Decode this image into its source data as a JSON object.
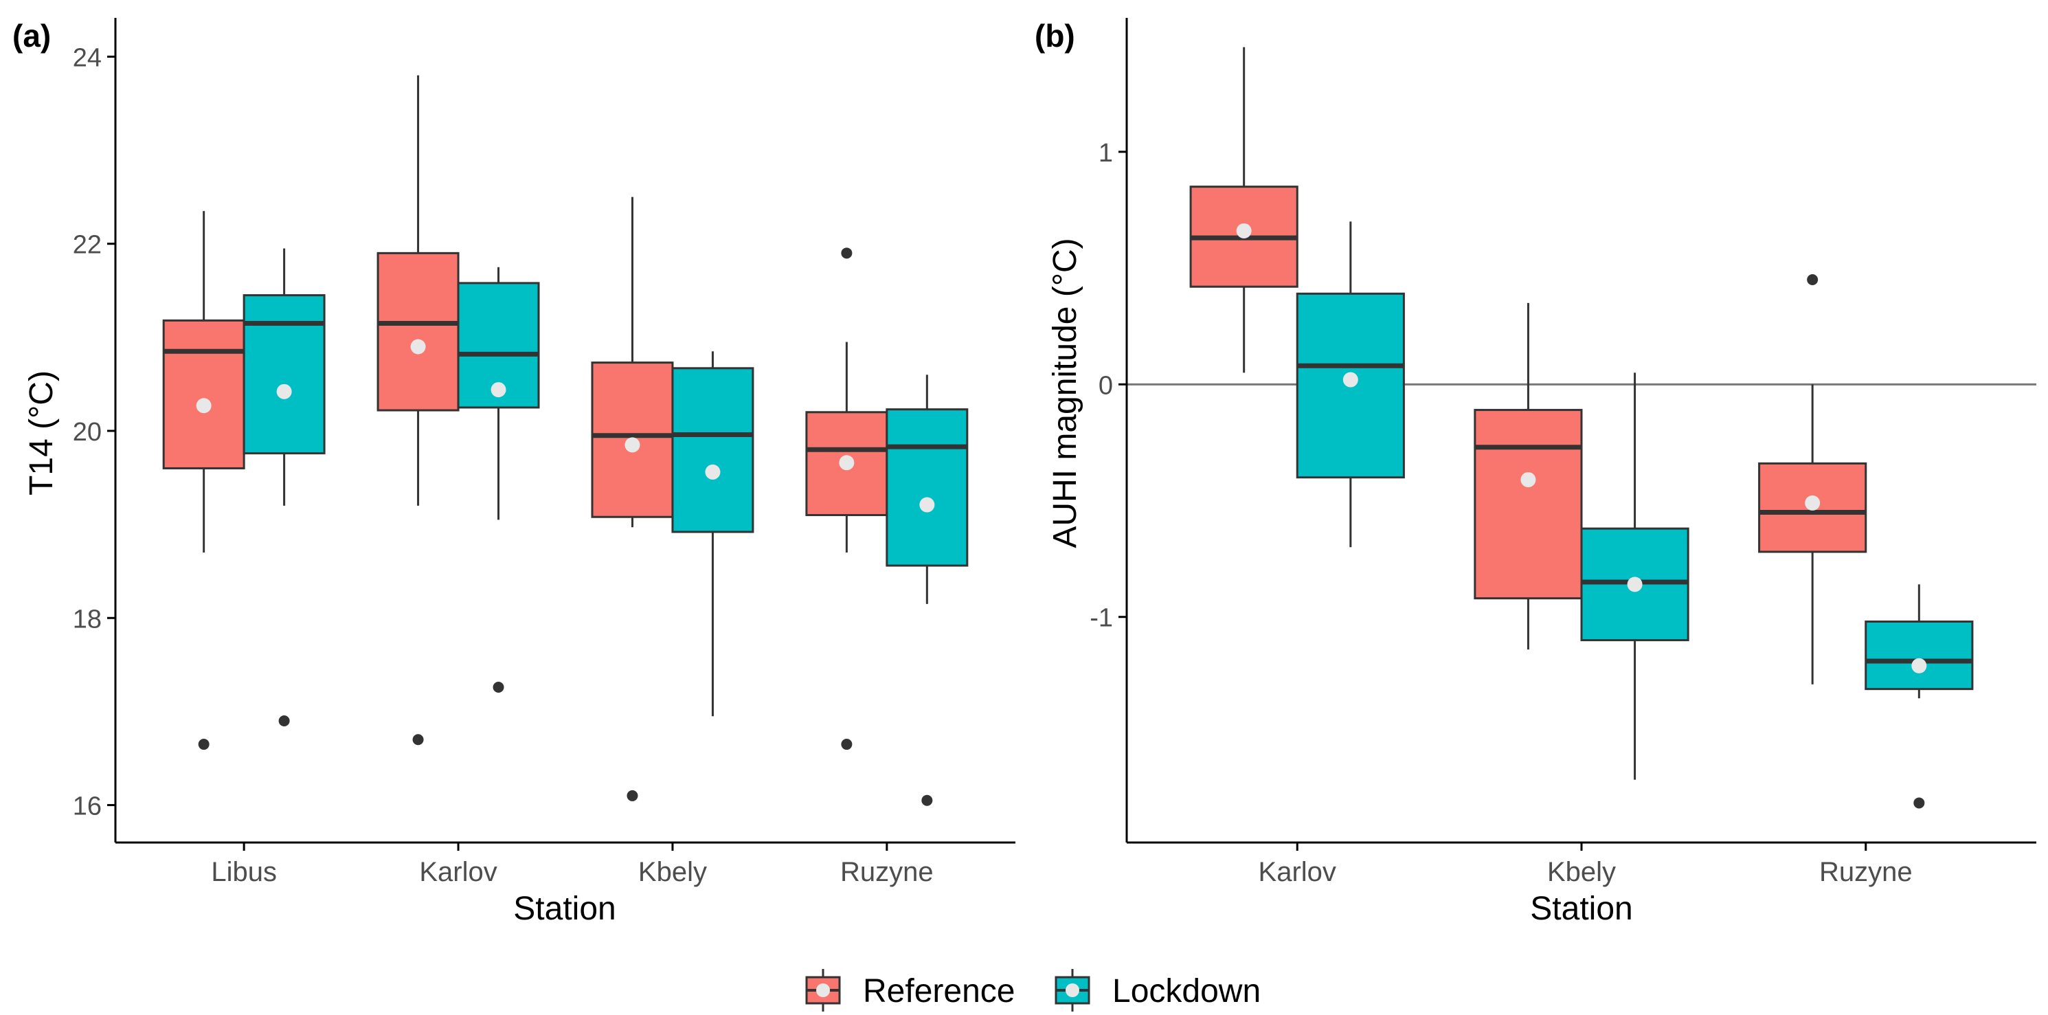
{
  "colors": {
    "reference": "#F8766D",
    "lockdown": "#00BFC4",
    "box_stroke": "#333333",
    "mean_dot": "#E8E8E8",
    "outlier": "#333333",
    "axis": "#000000",
    "tick_text": "#4D4D4D",
    "zero_line": "#777777"
  },
  "legend": {
    "entries": [
      {
        "key": "reference",
        "label": "Reference"
      },
      {
        "key": "lockdown",
        "label": "Lockdown"
      }
    ],
    "placement": "bottom"
  },
  "chart_data": [
    {
      "type": "box",
      "panel_label": "(a)",
      "xlabel": "Station",
      "ylabel": "T14 (°C)",
      "ylim": [
        15.6,
        24.4
      ],
      "yticks": [
        16,
        18,
        20,
        22,
        24
      ],
      "ytick_labels": [
        "16",
        "18",
        "20",
        "22",
        "24"
      ],
      "zero_line": false,
      "categories": [
        "Libus",
        "Karlov",
        "Kbely",
        "Ruzyne"
      ],
      "series": [
        {
          "name": "Reference",
          "boxes": [
            {
              "lower_whisker": 18.7,
              "q1": 19.6,
              "median": 20.85,
              "q3": 21.18,
              "upper_whisker": 22.35,
              "mean": 20.27,
              "outliers": [
                16.65
              ]
            },
            {
              "lower_whisker": 19.2,
              "q1": 20.22,
              "median": 21.15,
              "q3": 21.9,
              "upper_whisker": 23.8,
              "mean": 20.9,
              "outliers": [
                16.7
              ]
            },
            {
              "lower_whisker": 18.97,
              "q1": 19.08,
              "median": 19.95,
              "q3": 20.73,
              "upper_whisker": 22.5,
              "mean": 19.85,
              "outliers": [
                16.1
              ]
            },
            {
              "lower_whisker": 18.7,
              "q1": 19.1,
              "median": 19.8,
              "q3": 20.2,
              "upper_whisker": 20.95,
              "mean": 19.66,
              "outliers": [
                16.65,
                21.9
              ]
            }
          ]
        },
        {
          "name": "Lockdown",
          "boxes": [
            {
              "lower_whisker": 19.2,
              "q1": 19.76,
              "median": 21.15,
              "q3": 21.45,
              "upper_whisker": 21.95,
              "mean": 20.42,
              "outliers": [
                16.9
              ]
            },
            {
              "lower_whisker": 19.05,
              "q1": 20.25,
              "median": 20.82,
              "q3": 21.58,
              "upper_whisker": 21.75,
              "mean": 20.44,
              "outliers": [
                17.26
              ]
            },
            {
              "lower_whisker": 16.95,
              "q1": 18.92,
              "median": 19.96,
              "q3": 20.67,
              "upper_whisker": 20.85,
              "mean": 19.56,
              "outliers": []
            },
            {
              "lower_whisker": 18.15,
              "q1": 18.56,
              "median": 19.83,
              "q3": 20.23,
              "upper_whisker": 20.6,
              "mean": 19.21,
              "outliers": [
                16.05
              ]
            }
          ]
        }
      ]
    },
    {
      "type": "box",
      "panel_label": "(b)",
      "xlabel": "Station",
      "ylabel": "AUHI magnitude (°C)",
      "ylim": [
        -1.97,
        1.57
      ],
      "yticks": [
        -1,
        0,
        1
      ],
      "ytick_labels": [
        "-1",
        "0",
        "1"
      ],
      "zero_line": true,
      "categories": [
        "Karlov",
        "Kbely",
        "Ruzyne"
      ],
      "series": [
        {
          "name": "Reference",
          "boxes": [
            {
              "lower_whisker": 0.05,
              "q1": 0.42,
              "median": 0.63,
              "q3": 0.85,
              "upper_whisker": 1.45,
              "mean": 0.66,
              "outliers": []
            },
            {
              "lower_whisker": -1.14,
              "q1": -0.92,
              "median": -0.27,
              "q3": -0.11,
              "upper_whisker": 0.35,
              "mean": -0.41,
              "outliers": []
            },
            {
              "lower_whisker": -1.29,
              "q1": -0.72,
              "median": -0.55,
              "q3": -0.34,
              "upper_whisker": 0.0,
              "mean": -0.51,
              "outliers": [
                0.45
              ]
            }
          ]
        },
        {
          "name": "Lockdown",
          "boxes": [
            {
              "lower_whisker": -0.7,
              "q1": -0.4,
              "median": 0.08,
              "q3": 0.39,
              "upper_whisker": 0.7,
              "mean": 0.02,
              "outliers": []
            },
            {
              "lower_whisker": -1.7,
              "q1": -1.1,
              "median": -0.85,
              "q3": -0.62,
              "upper_whisker": 0.05,
              "mean": -0.86,
              "outliers": []
            },
            {
              "lower_whisker": -1.35,
              "q1": -1.31,
              "median": -1.19,
              "q3": -1.02,
              "upper_whisker": -0.86,
              "mean": -1.21,
              "outliers": [
                -1.8
              ]
            }
          ]
        }
      ]
    }
  ]
}
